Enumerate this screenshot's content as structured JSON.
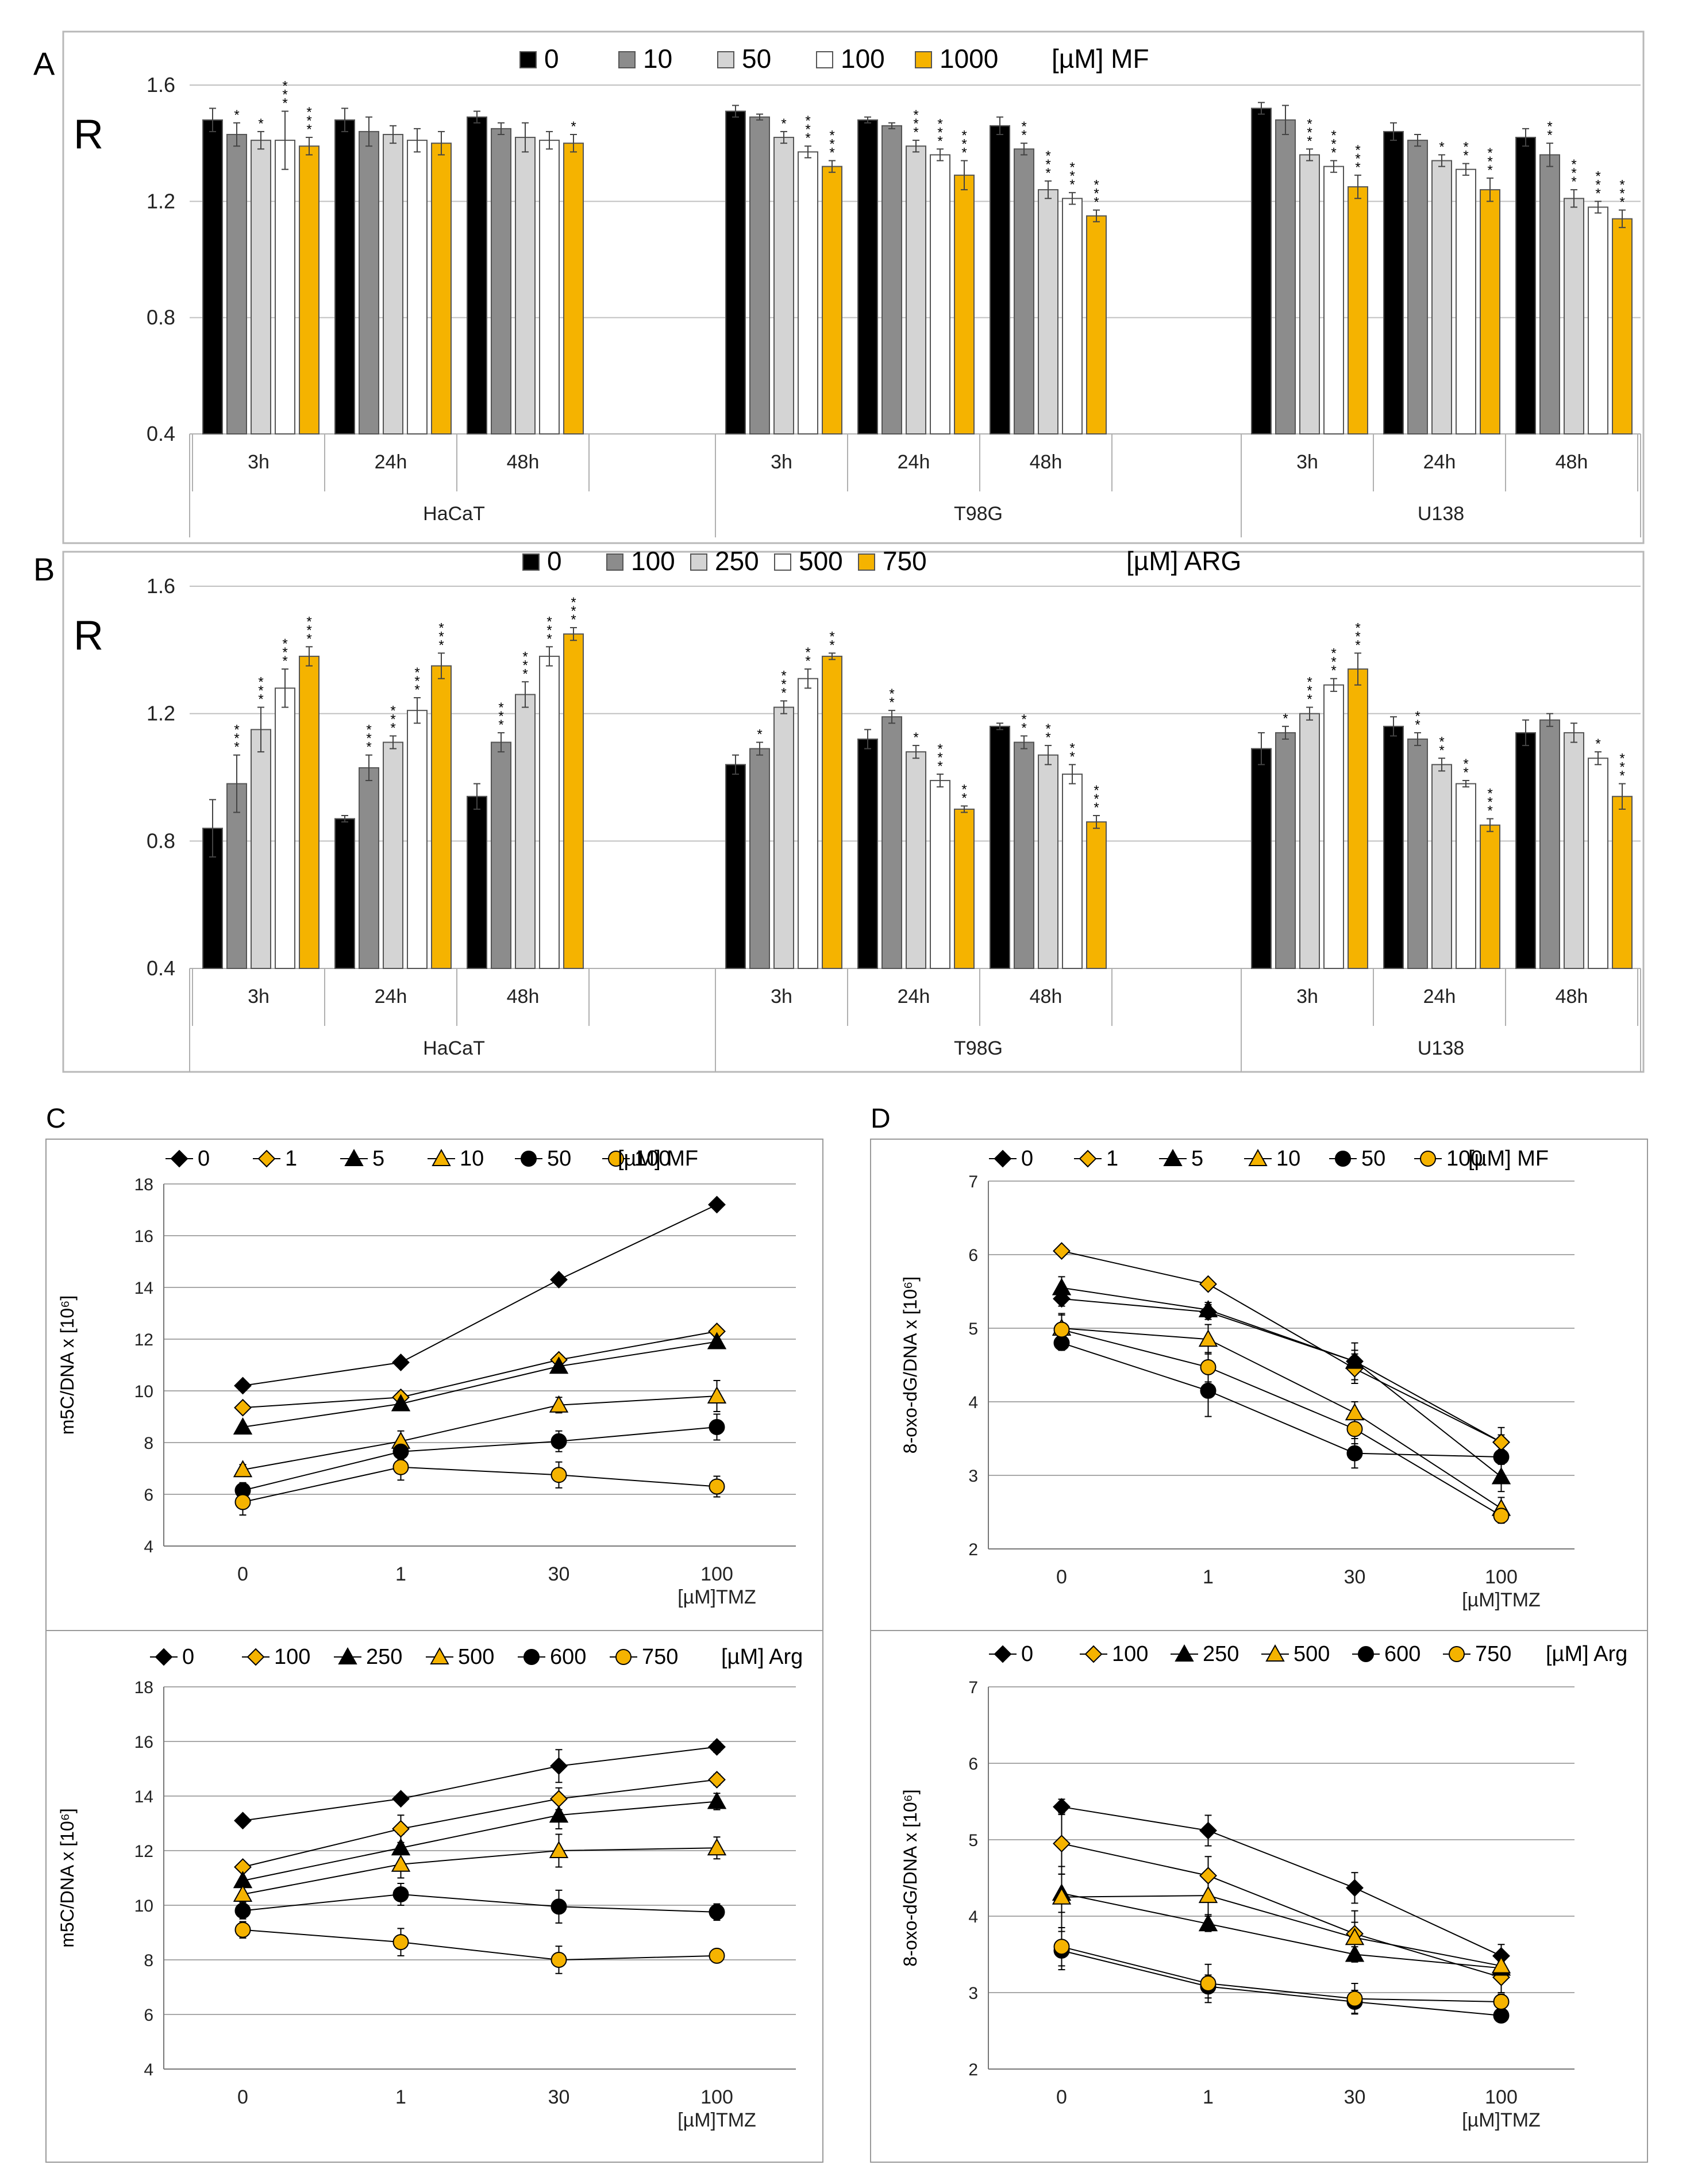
{
  "panels": {
    "A": {
      "letter": "A"
    },
    "B": {
      "letter": "B"
    },
    "C": {
      "letter": "C"
    },
    "D": {
      "letter": "D"
    }
  },
  "chart_data": [
    {
      "id": "A",
      "type": "bar",
      "ylabel": "R",
      "ylim": [
        0.4,
        1.6
      ],
      "yticks": [
        "0.4",
        "0.8",
        "1.2",
        "1.6"
      ],
      "legend_unit": "[µM] MF",
      "groups": [
        "HaCaT",
        "T98G",
        "U138"
      ],
      "times": [
        "3h",
        "24h",
        "48h"
      ],
      "series": [
        {
          "name": "0",
          "color": "#000000",
          "values": [
            [
              1.48,
              1.48,
              1.49
            ],
            [
              1.51,
              1.48,
              1.46
            ],
            [
              1.52,
              1.44,
              1.42
            ]
          ],
          "errors": [
            [
              0.04,
              0.04,
              0.02
            ],
            [
              0.02,
              0.01,
              0.03
            ],
            [
              0.02,
              0.03,
              0.03
            ]
          ],
          "sig": [
            [
              "",
              "",
              ""
            ],
            [
              "",
              "",
              ""
            ],
            [
              "",
              "",
              ""
            ]
          ]
        },
        {
          "name": "10",
          "color": "#8c8c8c",
          "values": [
            [
              1.43,
              1.44,
              1.45
            ],
            [
              1.49,
              1.46,
              1.38
            ],
            [
              1.48,
              1.41,
              1.36
            ]
          ],
          "errors": [
            [
              0.04,
              0.05,
              0.02
            ],
            [
              0.01,
              0.01,
              0.02
            ],
            [
              0.05,
              0.02,
              0.04
            ]
          ],
          "sig": [
            [
              "*",
              "",
              ""
            ],
            [
              "",
              "",
              "**"
            ],
            [
              "",
              "",
              "**"
            ]
          ]
        },
        {
          "name": "50",
          "color": "#d4d4d4",
          "values": [
            [
              1.41,
              1.43,
              1.42
            ],
            [
              1.42,
              1.39,
              1.24
            ],
            [
              1.36,
              1.34,
              1.21
            ]
          ],
          "errors": [
            [
              0.03,
              0.03,
              0.05
            ],
            [
              0.02,
              0.02,
              0.03
            ],
            [
              0.02,
              0.02,
              0.03
            ]
          ],
          "sig": [
            [
              "*",
              "",
              ""
            ],
            [
              "*",
              "***",
              "***"
            ],
            [
              "***",
              "*",
              "***"
            ]
          ]
        },
        {
          "name": "100",
          "color": "#ffffff",
          "values": [
            [
              1.41,
              1.41,
              1.41
            ],
            [
              1.37,
              1.36,
              1.21
            ],
            [
              1.32,
              1.31,
              1.18
            ]
          ],
          "errors": [
            [
              0.1,
              0.04,
              0.03
            ],
            [
              0.02,
              0.02,
              0.02
            ],
            [
              0.02,
              0.02,
              0.02
            ]
          ],
          "sig": [
            [
              "***",
              "",
              ""
            ],
            [
              "***",
              "***",
              "***"
            ],
            [
              "***",
              "**",
              "***"
            ]
          ]
        },
        {
          "name": "1000",
          "color": "#f5b300",
          "values": [
            [
              1.39,
              1.4,
              1.4
            ],
            [
              1.32,
              1.29,
              1.15
            ],
            [
              1.25,
              1.24,
              1.14
            ]
          ],
          "errors": [
            [
              0.03,
              0.04,
              0.03
            ],
            [
              0.02,
              0.05,
              0.02
            ],
            [
              0.04,
              0.04,
              0.03
            ]
          ],
          "sig": [
            [
              "***",
              "",
              "*"
            ],
            [
              "***",
              "***",
              "***"
            ],
            [
              "***",
              "***",
              "***"
            ]
          ]
        }
      ]
    },
    {
      "id": "B",
      "type": "bar",
      "ylabel": "R",
      "ylim": [
        0.4,
        1.6
      ],
      "yticks": [
        "0.4",
        "0.8",
        "1.2",
        "1.6"
      ],
      "legend_unit": "[µM] ARG",
      "groups": [
        "HaCaT",
        "T98G",
        "U138"
      ],
      "times": [
        "3h",
        "24h",
        "48h"
      ],
      "series": [
        {
          "name": "0",
          "color": "#000000",
          "values": [
            [
              0.84,
              0.87,
              0.94
            ],
            [
              1.04,
              1.12,
              1.16
            ],
            [
              1.09,
              1.16,
              1.14
            ]
          ],
          "errors": [
            [
              0.09,
              0.01,
              0.04
            ],
            [
              0.03,
              0.03,
              0.01
            ],
            [
              0.05,
              0.03,
              0.04
            ]
          ],
          "sig": [
            [
              "",
              "",
              ""
            ],
            [
              "",
              "",
              ""
            ],
            [
              "",
              "",
              ""
            ]
          ]
        },
        {
          "name": "100",
          "color": "#8c8c8c",
          "values": [
            [
              0.98,
              1.03,
              1.11
            ],
            [
              1.09,
              1.19,
              1.11
            ],
            [
              1.14,
              1.12,
              1.18
            ]
          ],
          "errors": [
            [
              0.09,
              0.04,
              0.03
            ],
            [
              0.02,
              0.02,
              0.02
            ],
            [
              0.02,
              0.02,
              0.02
            ]
          ],
          "sig": [
            [
              "***",
              "***",
              "***"
            ],
            [
              "*",
              "**",
              "**"
            ],
            [
              "*",
              "**",
              ""
            ]
          ]
        },
        {
          "name": "250",
          "color": "#d4d4d4",
          "values": [
            [
              1.15,
              1.11,
              1.26
            ],
            [
              1.22,
              1.08,
              1.07
            ],
            [
              1.2,
              1.04,
              1.14
            ]
          ],
          "errors": [
            [
              0.07,
              0.02,
              0.04
            ],
            [
              0.02,
              0.02,
              0.03
            ],
            [
              0.02,
              0.02,
              0.03
            ]
          ],
          "sig": [
            [
              "***",
              "***",
              "***"
            ],
            [
              "***",
              "*",
              "**"
            ],
            [
              "***",
              "**",
              ""
            ]
          ]
        },
        {
          "name": "500",
          "color": "#ffffff",
          "values": [
            [
              1.28,
              1.21,
              1.38
            ],
            [
              1.31,
              0.99,
              1.01
            ],
            [
              1.29,
              0.98,
              1.06
            ]
          ],
          "errors": [
            [
              0.06,
              0.04,
              0.03
            ],
            [
              0.03,
              0.02,
              0.03
            ],
            [
              0.02,
              0.01,
              0.02
            ]
          ],
          "sig": [
            [
              "***",
              "***",
              "***"
            ],
            [
              "**",
              "***",
              "**"
            ],
            [
              "***",
              "**",
              "*"
            ]
          ]
        },
        {
          "name": "750",
          "color": "#f5b300",
          "values": [
            [
              1.38,
              1.35,
              1.45
            ],
            [
              1.38,
              0.9,
              0.86
            ],
            [
              1.34,
              0.85,
              0.94
            ]
          ],
          "errors": [
            [
              0.03,
              0.04,
              0.02
            ],
            [
              0.01,
              0.01,
              0.02
            ],
            [
              0.05,
              0.02,
              0.04
            ]
          ],
          "sig": [
            [
              "***",
              "***",
              "***"
            ],
            [
              "**",
              "**",
              "***"
            ],
            [
              "***",
              "***",
              "***"
            ]
          ]
        }
      ]
    },
    {
      "id": "C-top",
      "type": "line",
      "ylabel": "m5C/DNA  x [10⁶]",
      "ylim": [
        4,
        18
      ],
      "yticks": [
        "4",
        "6",
        "8",
        "10",
        "12",
        "14",
        "16",
        "18"
      ],
      "categories": [
        "0",
        "1",
        "30",
        "100"
      ],
      "xunit": "[µM]TMZ",
      "legend_unit": "[µM]  MF",
      "series": [
        {
          "name": "0",
          "marker": "diamond",
          "fill": "#000000",
          "values": [
            10.2,
            11.1,
            14.3,
            17.2
          ],
          "errors": [
            0.1,
            0.1,
            0.1,
            0.1
          ]
        },
        {
          "name": "1",
          "marker": "diamond",
          "fill": "#f5b300",
          "values": [
            9.35,
            9.75,
            11.2,
            12.3
          ],
          "errors": [
            0.1,
            0.1,
            0.2,
            0.1
          ]
        },
        {
          "name": "5",
          "marker": "triangle",
          "fill": "#000000",
          "values": [
            8.6,
            9.5,
            10.95,
            11.9
          ],
          "errors": [
            0.1,
            0.2,
            0.2,
            0.2
          ]
        },
        {
          "name": "10",
          "marker": "triangle",
          "fill": "#f5b300",
          "values": [
            6.95,
            8.05,
            9.45,
            9.8
          ],
          "errors": [
            0.2,
            0.4,
            0.3,
            0.6
          ]
        },
        {
          "name": "50",
          "marker": "circle",
          "fill": "#000000",
          "values": [
            6.15,
            7.65,
            8.05,
            8.6
          ],
          "errors": [
            0.3,
            0.3,
            0.4,
            0.5
          ]
        },
        {
          "name": "100",
          "marker": "circle",
          "fill": "#f5b300",
          "values": [
            5.7,
            7.05,
            6.75,
            6.3
          ],
          "errors": [
            0.5,
            0.5,
            0.5,
            0.4
          ]
        }
      ]
    },
    {
      "id": "C-bottom",
      "type": "line",
      "ylabel": "m5C/DNA x [10⁶]",
      "ylim": [
        4,
        18
      ],
      "yticks": [
        "4",
        "6",
        "8",
        "10",
        "12",
        "14",
        "16",
        "18"
      ],
      "categories": [
        "0",
        "1",
        "30",
        "100"
      ],
      "xunit": "[µM]TMZ",
      "legend_unit": "[µM]  Arg",
      "series": [
        {
          "name": "0",
          "marker": "diamond",
          "fill": "#000000",
          "values": [
            13.1,
            13.9,
            15.1,
            15.8
          ],
          "errors": [
            0.1,
            0.1,
            0.6,
            0.2
          ]
        },
        {
          "name": "100",
          "marker": "diamond",
          "fill": "#f5b300",
          "values": [
            11.4,
            12.8,
            13.9,
            14.6
          ],
          "errors": [
            0.1,
            0.5,
            0.4,
            0.2
          ]
        },
        {
          "name": "250",
          "marker": "triangle",
          "fill": "#000000",
          "values": [
            10.9,
            12.1,
            13.3,
            13.8
          ],
          "errors": [
            0.1,
            0.5,
            0.5,
            0.3
          ]
        },
        {
          "name": "500",
          "marker": "triangle",
          "fill": "#f5b300",
          "values": [
            10.4,
            11.5,
            12.0,
            12.1
          ],
          "errors": [
            0.3,
            0.5,
            0.6,
            0.4
          ]
        },
        {
          "name": "600",
          "marker": "circle",
          "fill": "#000000",
          "values": [
            9.8,
            10.4,
            9.95,
            9.75
          ],
          "errors": [
            0.3,
            0.4,
            0.6,
            0.3
          ]
        },
        {
          "name": "750",
          "marker": "circle",
          "fill": "#f5b300",
          "values": [
            9.1,
            8.65,
            8.0,
            8.15
          ],
          "errors": [
            0.3,
            0.5,
            0.5,
            0.2
          ]
        }
      ]
    },
    {
      "id": "D-top",
      "type": "line",
      "ylabel": "8-oxo-dG/DNA x [10⁶]",
      "ylim": [
        2,
        7
      ],
      "yticks": [
        "2",
        "3",
        "4",
        "5",
        "6",
        "7"
      ],
      "categories": [
        "0",
        "1",
        "30",
        "100"
      ],
      "xunit": "[µM]TMZ",
      "legend_unit": "[µM]   MF",
      "series": [
        {
          "name": "0",
          "marker": "diamond",
          "fill": "#000000",
          "values": [
            5.4,
            5.22,
            4.55,
            3.45
          ],
          "errors": [
            0.1,
            0.1,
            0.15,
            0.1
          ]
        },
        {
          "name": "1",
          "marker": "diamond",
          "fill": "#f5b300",
          "values": [
            6.05,
            5.6,
            4.45,
            3.45
          ],
          "errors": [
            0.05,
            0.05,
            0.2,
            0.2
          ]
        },
        {
          "name": "5",
          "marker": "triangle",
          "fill": "#000000",
          "values": [
            5.55,
            5.25,
            4.55,
            2.98
          ],
          "errors": [
            0.15,
            0.1,
            0.25,
            0.2
          ]
        },
        {
          "name": "10",
          "marker": "triangle",
          "fill": "#f5b300",
          "values": [
            5.0,
            4.85,
            3.85,
            2.55
          ],
          "errors": [
            0.2,
            0.2,
            0.15,
            0.15
          ]
        },
        {
          "name": "50",
          "marker": "circle",
          "fill": "#000000",
          "values": [
            4.8,
            4.15,
            3.3,
            3.25
          ],
          "errors": [
            0.1,
            0.35,
            0.2,
            0.1
          ]
        },
        {
          "name": "100",
          "marker": "circle",
          "fill": "#f5b300",
          "values": [
            4.98,
            4.47,
            3.63,
            2.45
          ],
          "errors": [
            0.2,
            0.2,
            0.2,
            0.1
          ]
        }
      ]
    },
    {
      "id": "D-bottom",
      "type": "line",
      "ylabel": "8-oxo-dG/DNA x [10⁶]",
      "ylim": [
        2,
        7
      ],
      "yticks": [
        "2",
        "3",
        "4",
        "5",
        "6",
        "7"
      ],
      "categories": [
        "0",
        "1",
        "30",
        "100"
      ],
      "xunit": "[µM]TMZ",
      "legend_unit": "[µM]  Arg",
      "series": [
        {
          "name": "0",
          "marker": "diamond",
          "fill": "#000000",
          "values": [
            5.43,
            5.12,
            4.37,
            3.48
          ],
          "errors": [
            0.1,
            0.2,
            0.2,
            0.15
          ]
        },
        {
          "name": "100",
          "marker": "diamond",
          "fill": "#f5b300",
          "values": [
            4.95,
            4.53,
            3.77,
            3.2
          ],
          "errors": [
            0.4,
            0.25,
            0.3,
            0.2
          ]
        },
        {
          "name": "250",
          "marker": "triangle",
          "fill": "#000000",
          "values": [
            4.3,
            3.9,
            3.5,
            3.32
          ],
          "errors": [
            0.25,
            0.1,
            0.1,
            0.1
          ]
        },
        {
          "name": "500",
          "marker": "triangle",
          "fill": "#f5b300",
          "values": [
            4.25,
            4.27,
            3.72,
            3.35
          ],
          "errors": [
            0.4,
            0.25,
            0.2,
            0.1
          ]
        },
        {
          "name": "600",
          "marker": "circle",
          "fill": "#000000",
          "values": [
            3.55,
            3.08,
            2.88,
            2.7
          ],
          "errors": [
            0.25,
            0.15,
            0.15,
            0.05
          ]
        },
        {
          "name": "750",
          "marker": "circle",
          "fill": "#f5b300",
          "values": [
            3.6,
            3.12,
            2.92,
            2.88
          ],
          "errors": [
            0.25,
            0.25,
            0.2,
            0.1
          ]
        }
      ]
    }
  ]
}
